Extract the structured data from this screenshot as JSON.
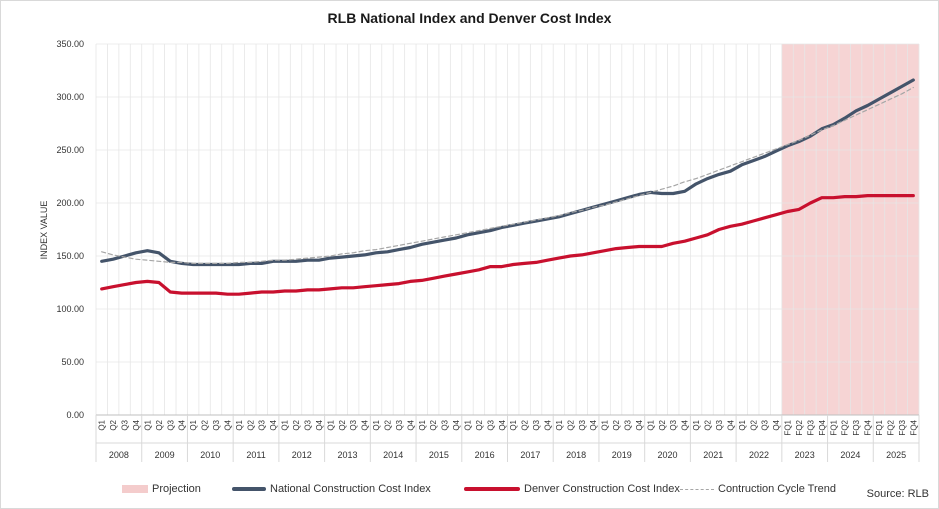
{
  "chart_data": {
    "type": "line",
    "title": "RLB National Index and Denver Cost Index",
    "ylabel": "INDEX VALUE",
    "xlabel": "",
    "ylim": [
      0,
      350
    ],
    "yticks": [
      "0.00",
      "50.00",
      "100.00",
      "150.00",
      "200.00",
      "250.00",
      "300.00",
      "350.00"
    ],
    "grid": "vertical and horizontal",
    "years": [
      "2008",
      "2009",
      "2010",
      "2011",
      "2012",
      "2013",
      "2014",
      "2015",
      "2016",
      "2017",
      "2018",
      "2019",
      "2020",
      "2021",
      "2022",
      "2023",
      "2024",
      "2025"
    ],
    "quarter_labels": [
      "Q1",
      "Q2",
      "Q3",
      "Q4",
      "Q1",
      "Q2",
      "Q3",
      "Q4",
      "Q1",
      "Q2",
      "Q3",
      "Q4",
      "Q1",
      "Q2",
      "Q3",
      "Q4",
      "Q1",
      "Q2",
      "Q3",
      "Q4",
      "Q1",
      "Q2",
      "Q3",
      "Q4",
      "Q1",
      "Q2",
      "Q3",
      "Q4",
      "Q1",
      "Q2",
      "Q3",
      "Q4",
      "Q1",
      "Q2",
      "Q3",
      "Q4",
      "Q1",
      "Q2",
      "Q3",
      "Q4",
      "Q1",
      "Q2",
      "Q3",
      "Q4",
      "Q1",
      "Q2",
      "Q3",
      "Q4",
      "Q1",
      "Q2",
      "Q3",
      "Q4",
      "Q1",
      "Q2",
      "Q3",
      "Q4",
      "Q1",
      "Q2",
      "Q3",
      "Q4",
      "FQ1",
      "FQ2",
      "FQ3",
      "FQ4",
      "FQ1",
      "FQ2",
      "FQ3",
      "FQ4",
      "FQ1",
      "FQ2",
      "FQ3",
      "FQ4"
    ],
    "projection_start_index": 60,
    "series": [
      {
        "name": "National Construction Cost Index",
        "color": "#44546a",
        "values": [
          145,
          147,
          150,
          153,
          155,
          153,
          145,
          143,
          142,
          142,
          142,
          142,
          142,
          143,
          143,
          145,
          145,
          145,
          146,
          146,
          148,
          149,
          150,
          151,
          153,
          154,
          156,
          158,
          161,
          163,
          165,
          167,
          170,
          172,
          174,
          177,
          179,
          181,
          183,
          185,
          187,
          190,
          193,
          196,
          199,
          202,
          205,
          208,
          210,
          209,
          209,
          211,
          218,
          223,
          227,
          230,
          236,
          240,
          244,
          249,
          254,
          258,
          263,
          270,
          274,
          280,
          287,
          292,
          298,
          304,
          310,
          316
        ]
      },
      {
        "name": "Denver Construction Cost Index",
        "color": "#c8102e",
        "values": [
          119,
          121,
          123,
          125,
          126,
          125,
          116,
          115,
          115,
          115,
          115,
          114,
          114,
          115,
          116,
          116,
          117,
          117,
          118,
          118,
          119,
          120,
          120,
          121,
          122,
          123,
          124,
          126,
          127,
          129,
          131,
          133,
          135,
          137,
          140,
          140,
          142,
          143,
          144,
          146,
          148,
          150,
          151,
          153,
          155,
          157,
          158,
          159,
          159,
          159,
          162,
          164,
          167,
          170,
          175,
          178,
          180,
          183,
          186,
          189,
          192,
          194,
          200,
          205,
          205,
          206,
          206,
          207,
          207,
          207,
          207,
          207
        ]
      },
      {
        "name": "Contruction Cycle Trend",
        "color": "#a6a6a6",
        "values": [
          154,
          151,
          149,
          147,
          146,
          145,
          144,
          144,
          143,
          143,
          143,
          143,
          144,
          144,
          145,
          146,
          146,
          147,
          148,
          149,
          150,
          152,
          153,
          155,
          156,
          158,
          160,
          162,
          164,
          166,
          168,
          170,
          172,
          174,
          176,
          178,
          180,
          182,
          184,
          186,
          188,
          191,
          193,
          196,
          198,
          201,
          204,
          207,
          210,
          213,
          216,
          220,
          223,
          227,
          231,
          235,
          239,
          243,
          247,
          251,
          255,
          259,
          264,
          269,
          273,
          278,
          283,
          288,
          293,
          298,
          303,
          309
        ]
      }
    ],
    "legend": {
      "position": "bottom",
      "entries": [
        "Projection",
        "National Construction Cost Index",
        "Denver Construction Cost Index",
        "Contruction Cycle Trend"
      ],
      "projection_color": "#f4cccc"
    },
    "source": "Source: RLB"
  }
}
